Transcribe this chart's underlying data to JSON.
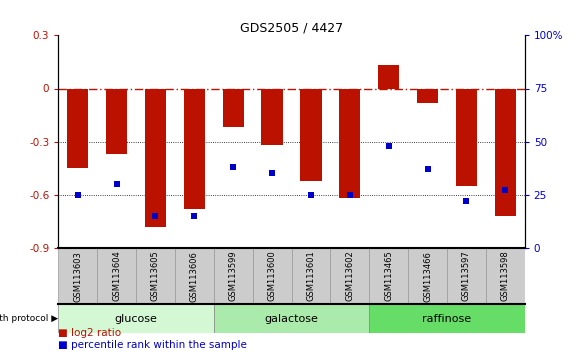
{
  "title": "GDS2505 / 4427",
  "samples": [
    "GSM113603",
    "GSM113604",
    "GSM113605",
    "GSM113606",
    "GSM113599",
    "GSM113600",
    "GSM113601",
    "GSM113602",
    "GSM113465",
    "GSM113466",
    "GSM113597",
    "GSM113598"
  ],
  "log2_ratio": [
    -0.45,
    -0.37,
    -0.78,
    -0.68,
    -0.22,
    -0.32,
    -0.52,
    -0.62,
    0.13,
    -0.08,
    -0.55,
    -0.72
  ],
  "percentile_rank": [
    25,
    30,
    15,
    15,
    38,
    35,
    25,
    25,
    48,
    37,
    22,
    27
  ],
  "groups": [
    {
      "label": "glucose",
      "start": 0,
      "end": 4,
      "color": "#d4f7d4"
    },
    {
      "label": "galactose",
      "start": 4,
      "end": 8,
      "color": "#aaeaaa"
    },
    {
      "label": "raffinose",
      "start": 8,
      "end": 12,
      "color": "#66dd66"
    }
  ],
  "bar_color": "#bb1100",
  "dot_color": "#0000cc",
  "ylim_left": [
    -0.9,
    0.3
  ],
  "ylim_right": [
    0,
    100
  ],
  "yticks_left": [
    -0.9,
    -0.6,
    -0.3,
    0.0,
    0.3
  ],
  "yticks_right": [
    0,
    25,
    50,
    75,
    100
  ],
  "hline_y": 0.0,
  "dotted_lines": [
    -0.3,
    -0.6
  ],
  "background_color": "#ffffff",
  "bar_width": 0.55
}
